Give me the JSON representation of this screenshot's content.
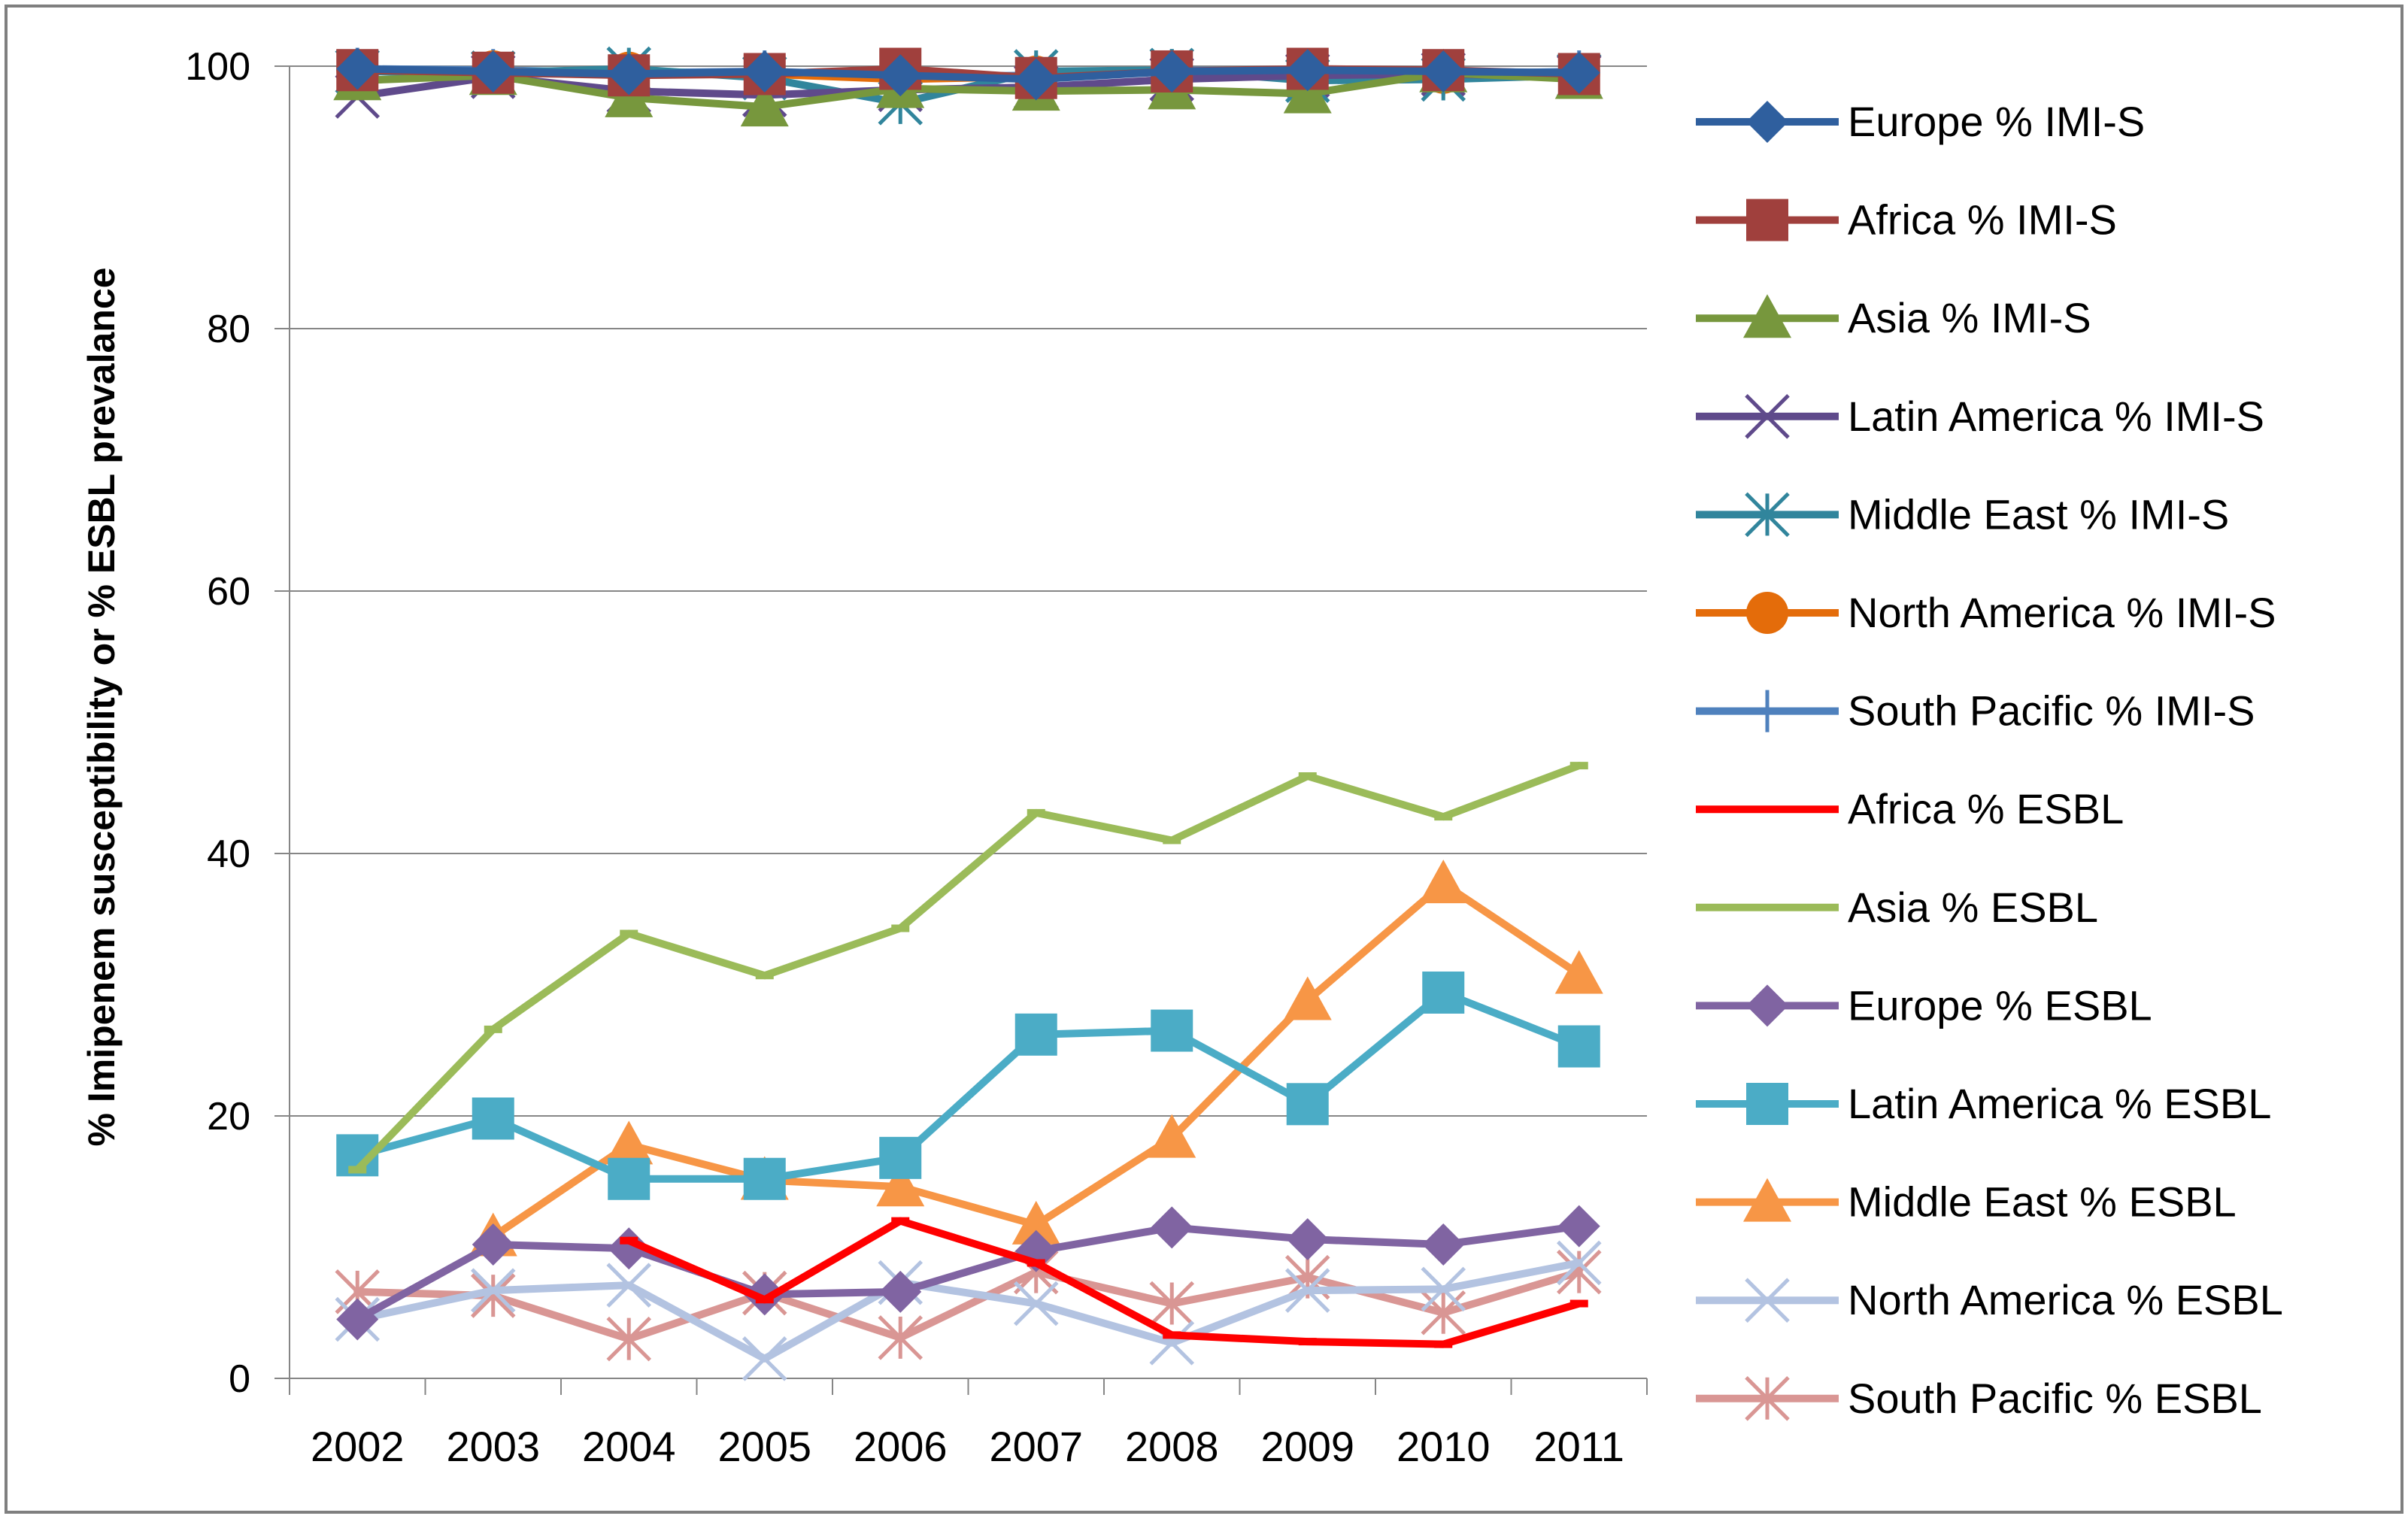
{
  "chart_data": {
    "type": "line",
    "title": "",
    "xlabel": "",
    "ylabel": "% Imipenem susceptibility or % ESBL prevalance",
    "ylim": [
      0,
      100
    ],
    "yticks": [
      0,
      20,
      40,
      60,
      80,
      100
    ],
    "grid": true,
    "legend_position": "right",
    "categories": [
      "2002",
      "2003",
      "2004",
      "2005",
      "2006",
      "2007",
      "2008",
      "2009",
      "2010",
      "2011"
    ],
    "series": [
      {
        "name": "Europe % IMI-S",
        "color": "#2f5f9e",
        "marker": "diamond",
        "values": [
          99.8,
          99.6,
          99.4,
          99.6,
          99.3,
          99.0,
          99.6,
          99.7,
          99.6,
          99.5
        ]
      },
      {
        "name": "Africa % IMI-S",
        "color": "#a0403d",
        "marker": "square",
        "values": [
          99.7,
          99.5,
          99.3,
          99.4,
          99.8,
          99.1,
          99.6,
          99.8,
          99.7,
          99.4
        ]
      },
      {
        "name": "Asia % IMI-S",
        "color": "#77973d",
        "marker": "triangle",
        "values": [
          98.9,
          99.3,
          97.6,
          96.9,
          98.3,
          98.1,
          98.2,
          97.9,
          99.5,
          99.0
        ]
      },
      {
        "name": "Latin America % IMI-S",
        "color": "#5f4a8b",
        "marker": "x",
        "values": [
          97.7,
          99.2,
          98.1,
          97.8,
          98.2,
          98.4,
          99.0,
          99.3,
          99.4,
          99.2
        ]
      },
      {
        "name": "Middle East % IMI-S",
        "color": "#31859c",
        "marker": "asterisk",
        "values": [
          99.6,
          99.5,
          99.8,
          99.1,
          97.2,
          99.6,
          99.7,
          98.9,
          99.0,
          99.3
        ]
      },
      {
        "name": "North America % IMI-S",
        "color": "#e46c0a",
        "marker": "circle",
        "values": [
          99.7,
          99.6,
          99.5,
          99.4,
          99.0,
          99.2,
          99.6,
          99.6,
          99.5,
          99.4
        ]
      },
      {
        "name": "South Pacific % IMI-S",
        "color": "#4f81bd",
        "marker": "plus",
        "values": [
          99.8,
          99.7,
          99.5,
          99.6,
          99.2,
          99.3,
          99.7,
          99.6,
          99.4,
          99.6
        ]
      },
      {
        "name": "Africa % ESBL",
        "color": "#ff0000",
        "marker": "dash",
        "values": [
          null,
          null,
          10.5,
          6.0,
          12.0,
          8.8,
          3.3,
          2.8,
          2.6,
          5.7
        ]
      },
      {
        "name": "Asia % ESBL",
        "color": "#9bbb59",
        "marker": "dash",
        "values": [
          15.9,
          26.6,
          33.9,
          30.7,
          34.3,
          43.1,
          41.0,
          45.9,
          42.8,
          46.7
        ]
      },
      {
        "name": "Europe % ESBL",
        "color": "#8064a2",
        "marker": "diamond",
        "values": [
          4.5,
          10.2,
          9.9,
          6.4,
          6.6,
          9.7,
          11.5,
          10.6,
          10.2,
          11.6
        ]
      },
      {
        "name": "Latin America % ESBL",
        "color": "#4bacc6",
        "marker": "square",
        "values": [
          17.0,
          19.8,
          15.2,
          15.2,
          16.8,
          26.2,
          26.5,
          20.9,
          29.4,
          25.3
        ]
      },
      {
        "name": "Middle East % ESBL",
        "color": "#f79646",
        "marker": "triangle",
        "values": [
          null,
          10.8,
          17.8,
          15.1,
          14.6,
          11.7,
          18.3,
          28.8,
          37.7,
          30.8
        ]
      },
      {
        "name": "North America % ESBL",
        "color": "#b3c3e1",
        "marker": "x",
        "values": [
          4.5,
          6.7,
          7.1,
          1.5,
          7.3,
          5.7,
          2.7,
          6.7,
          6.8,
          8.8
        ]
      },
      {
        "name": "South Pacific % ESBL",
        "color": "#d99694",
        "marker": "asterisk",
        "values": [
          6.6,
          6.3,
          3.0,
          6.5,
          3.1,
          8.1,
          5.7,
          7.7,
          5.0,
          8.1
        ]
      }
    ]
  }
}
